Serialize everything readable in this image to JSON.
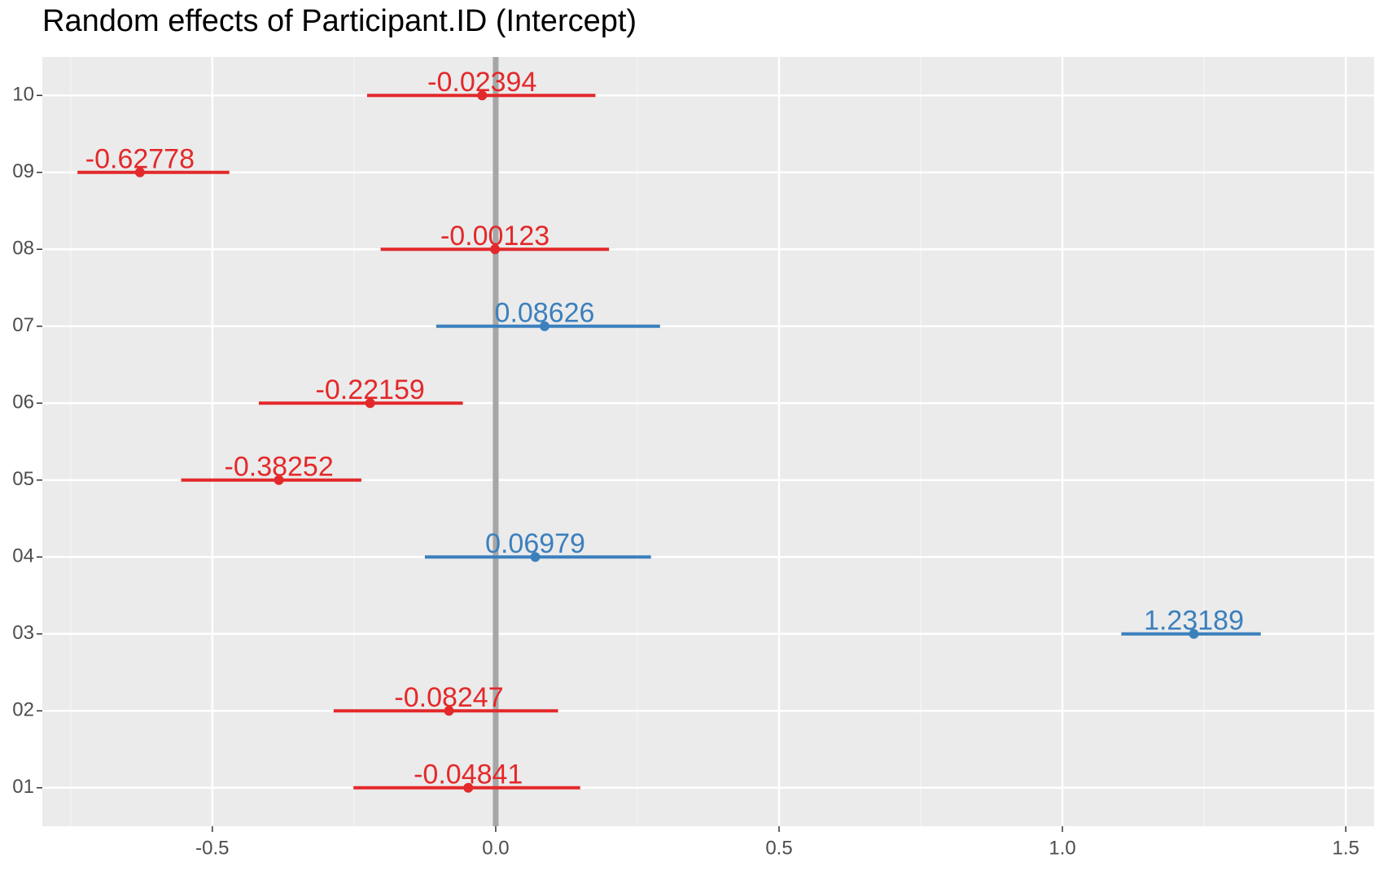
{
  "chart_data": {
    "type": "forest",
    "title": "Random effects of Participant.ID (Intercept)",
    "categories": [
      "10",
      "09",
      "08",
      "07",
      "06",
      "05",
      "04",
      "03",
      "02",
      "01"
    ],
    "values": [
      -0.02394,
      -0.62778,
      -0.00123,
      0.08626,
      -0.22159,
      -0.38252,
      0.06979,
      1.23189,
      -0.08247,
      -0.04841
    ],
    "lower": [
      -0.227,
      -0.738,
      -0.203,
      -0.105,
      -0.418,
      -0.555,
      -0.125,
      1.104,
      -0.286,
      -0.251
    ],
    "upper": [
      0.176,
      -0.47,
      0.2,
      0.29,
      -0.058,
      -0.237,
      0.274,
      1.35,
      0.11,
      0.149
    ],
    "colors": [
      "#e3292b",
      "#e3292b",
      "#e3292b",
      "#3b80bd",
      "#e3292b",
      "#e3292b",
      "#3b80bd",
      "#3b80bd",
      "#e3292b",
      "#e3292b"
    ],
    "xlim": [
      -0.8,
      1.55
    ],
    "xticks": [
      -0.5,
      {
        "value": 0,
        "label": "0.0"
      },
      0.5,
      {
        "value": 1,
        "label": "1.0"
      },
      1.5
    ],
    "reference_line": 0,
    "grid": true
  }
}
